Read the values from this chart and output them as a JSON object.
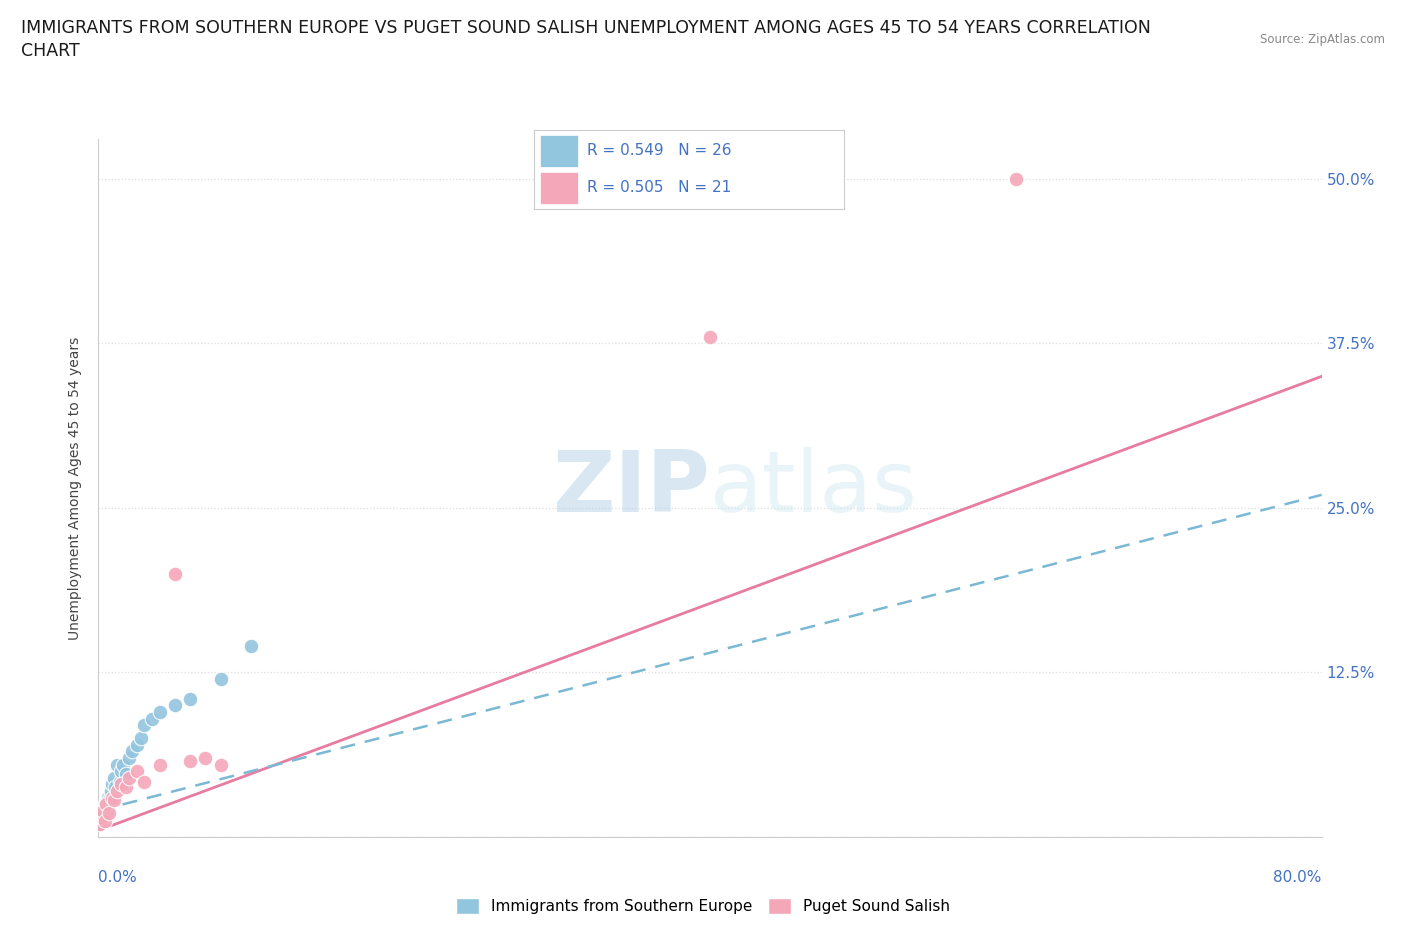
{
  "title_line1": "IMMIGRANTS FROM SOUTHERN EUROPE VS PUGET SOUND SALISH UNEMPLOYMENT AMONG AGES 45 TO 54 YEARS CORRELATION",
  "title_line2": "CHART",
  "source": "Source: ZipAtlas.com",
  "ylabel": "Unemployment Among Ages 45 to 54 years",
  "legend1_label": "Immigrants from Southern Europe",
  "legend2_label": "Puget Sound Salish",
  "r1": 0.549,
  "n1": 26,
  "r2": 0.505,
  "n2": 21,
  "color_blue": "#92c5de",
  "color_pink": "#f4a7b9",
  "color_line_blue": "#7ab8d4",
  "color_line_pink": "#e87ba0",
  "watermark_color": "#c8dff0",
  "bg_color": "#ffffff",
  "grid_color": "#dddddd",
  "blue_x": [
    0.2,
    0.3,
    0.4,
    0.5,
    0.6,
    0.7,
    0.8,
    0.9,
    1.0,
    1.1,
    1.2,
    1.4,
    1.5,
    1.6,
    1.8,
    2.0,
    2.2,
    2.5,
    2.8,
    3.0,
    3.5,
    4.0,
    5.0,
    6.0,
    8.0,
    10.0
  ],
  "blue_y": [
    1.5,
    2.0,
    2.5,
    1.8,
    3.0,
    2.8,
    3.5,
    4.0,
    4.5,
    3.8,
    5.5,
    4.2,
    5.0,
    5.5,
    4.8,
    6.0,
    6.5,
    7.0,
    7.5,
    8.5,
    9.0,
    9.5,
    10.0,
    10.5,
    12.0,
    14.5
  ],
  "pink_x": [
    0.1,
    0.2,
    0.3,
    0.4,
    0.5,
    0.7,
    0.9,
    1.0,
    1.2,
    1.5,
    1.8,
    2.0,
    2.5,
    3.0,
    4.0,
    5.0,
    6.0,
    7.0,
    8.0,
    40.0,
    60.0
  ],
  "pink_y": [
    1.0,
    1.5,
    2.0,
    1.2,
    2.5,
    1.8,
    3.0,
    2.8,
    3.5,
    4.0,
    3.8,
    4.5,
    5.0,
    4.2,
    5.5,
    20.0,
    5.8,
    6.0,
    5.5,
    38.0,
    50.0
  ],
  "xlim": [
    0,
    80
  ],
  "ylim": [
    0,
    53
  ],
  "ytick_vals": [
    0,
    12.5,
    25.0,
    37.5,
    50.0
  ],
  "ytick_labels": [
    "",
    "12.5%",
    "25.0%",
    "37.5%",
    "50.0%"
  ],
  "title_fontsize": 12.5,
  "axis_label_fontsize": 10,
  "tick_fontsize": 11
}
